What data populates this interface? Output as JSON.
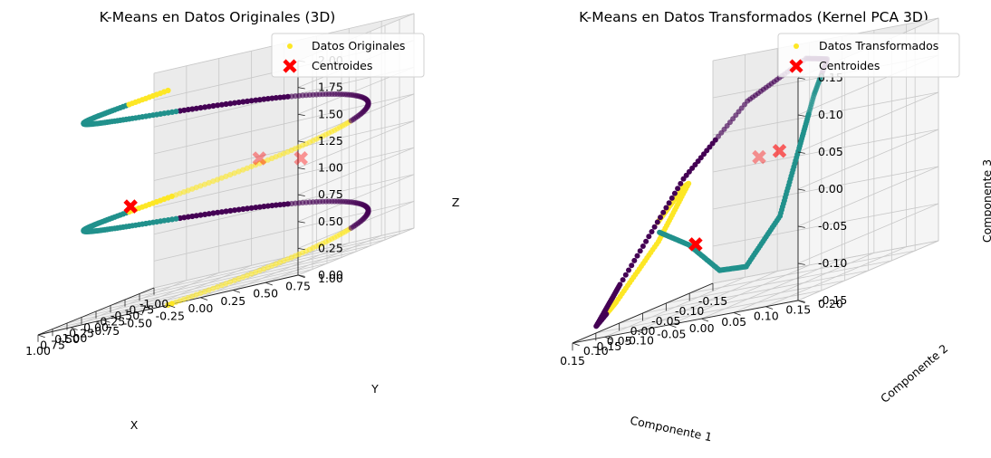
{
  "chart_data": [
    {
      "type": "scatter3d",
      "title": "K-Means en Datos Originales (3D)",
      "xlabel": "X",
      "ylabel": "Y",
      "zlabel": "Z",
      "xlim": [
        -1.0,
        1.0
      ],
      "ylim": [
        -1.0,
        1.0
      ],
      "zlim": [
        0.0,
        2.0
      ],
      "x_ticks": [
        "-1.00",
        "-0.75",
        "-0.50",
        "-0.25",
        "0.00",
        "0.25",
        "0.50",
        "0.75",
        "1.00"
      ],
      "y_ticks": [
        "-1.00",
        "-0.75",
        "-0.50",
        "-0.25",
        "0.00",
        "0.25",
        "0.50",
        "0.75",
        "1.00"
      ],
      "z_ticks": [
        "0.00",
        "0.25",
        "0.50",
        "0.75",
        "1.00",
        "1.25",
        "1.50",
        "1.75",
        "2.00"
      ],
      "legend": [
        "Datos Originales",
        "Centroides"
      ],
      "legend_position": "top-right",
      "data_description": "helix x=cos(t), y=sin(t), z=t/(2*pi), t in [0, 4*pi], colored by 3 k-means clusters",
      "centroids": [
        [
          0.12,
          0.63,
          1.0
        ],
        [
          -0.8,
          -0.1,
          1.0
        ],
        [
          0.48,
          -0.52,
          0.95
        ]
      ]
    },
    {
      "type": "scatter3d",
      "title": "K-Means en Datos Transformados (Kernel PCA 3D)",
      "xlabel": "Componente 1",
      "ylabel": "Componente 2",
      "zlabel": "Componente 3",
      "xlim": [
        -0.17,
        0.17
      ],
      "ylim": [
        -0.16,
        0.22
      ],
      "zlim": [
        -0.18,
        0.18
      ],
      "x_ticks": [
        "-0.15",
        "-0.10",
        "-0.05",
        "0.00",
        "0.05",
        "0.10",
        "0.15"
      ],
      "y_ticks": [
        "-0.15",
        "-0.10",
        "-0.05",
        "0.00",
        "0.05",
        "0.10",
        "0.15",
        "0.20"
      ],
      "z_ticks": [
        "-0.15",
        "-0.10",
        "-0.05",
        "0.00",
        "0.05",
        "0.10",
        "0.15"
      ],
      "legend": [
        "Datos Transformados",
        "Centroides"
      ],
      "legend_position": "top-right",
      "data_description": "closed loop curve in kernel PCA space, colored by 3 k-means clusters",
      "centroids": [
        [
          0.02,
          0.05,
          0.04
        ],
        [
          -0.13,
          -0.02,
          0.02
        ],
        [
          0.03,
          -0.05,
          -0.08
        ]
      ]
    }
  ]
}
